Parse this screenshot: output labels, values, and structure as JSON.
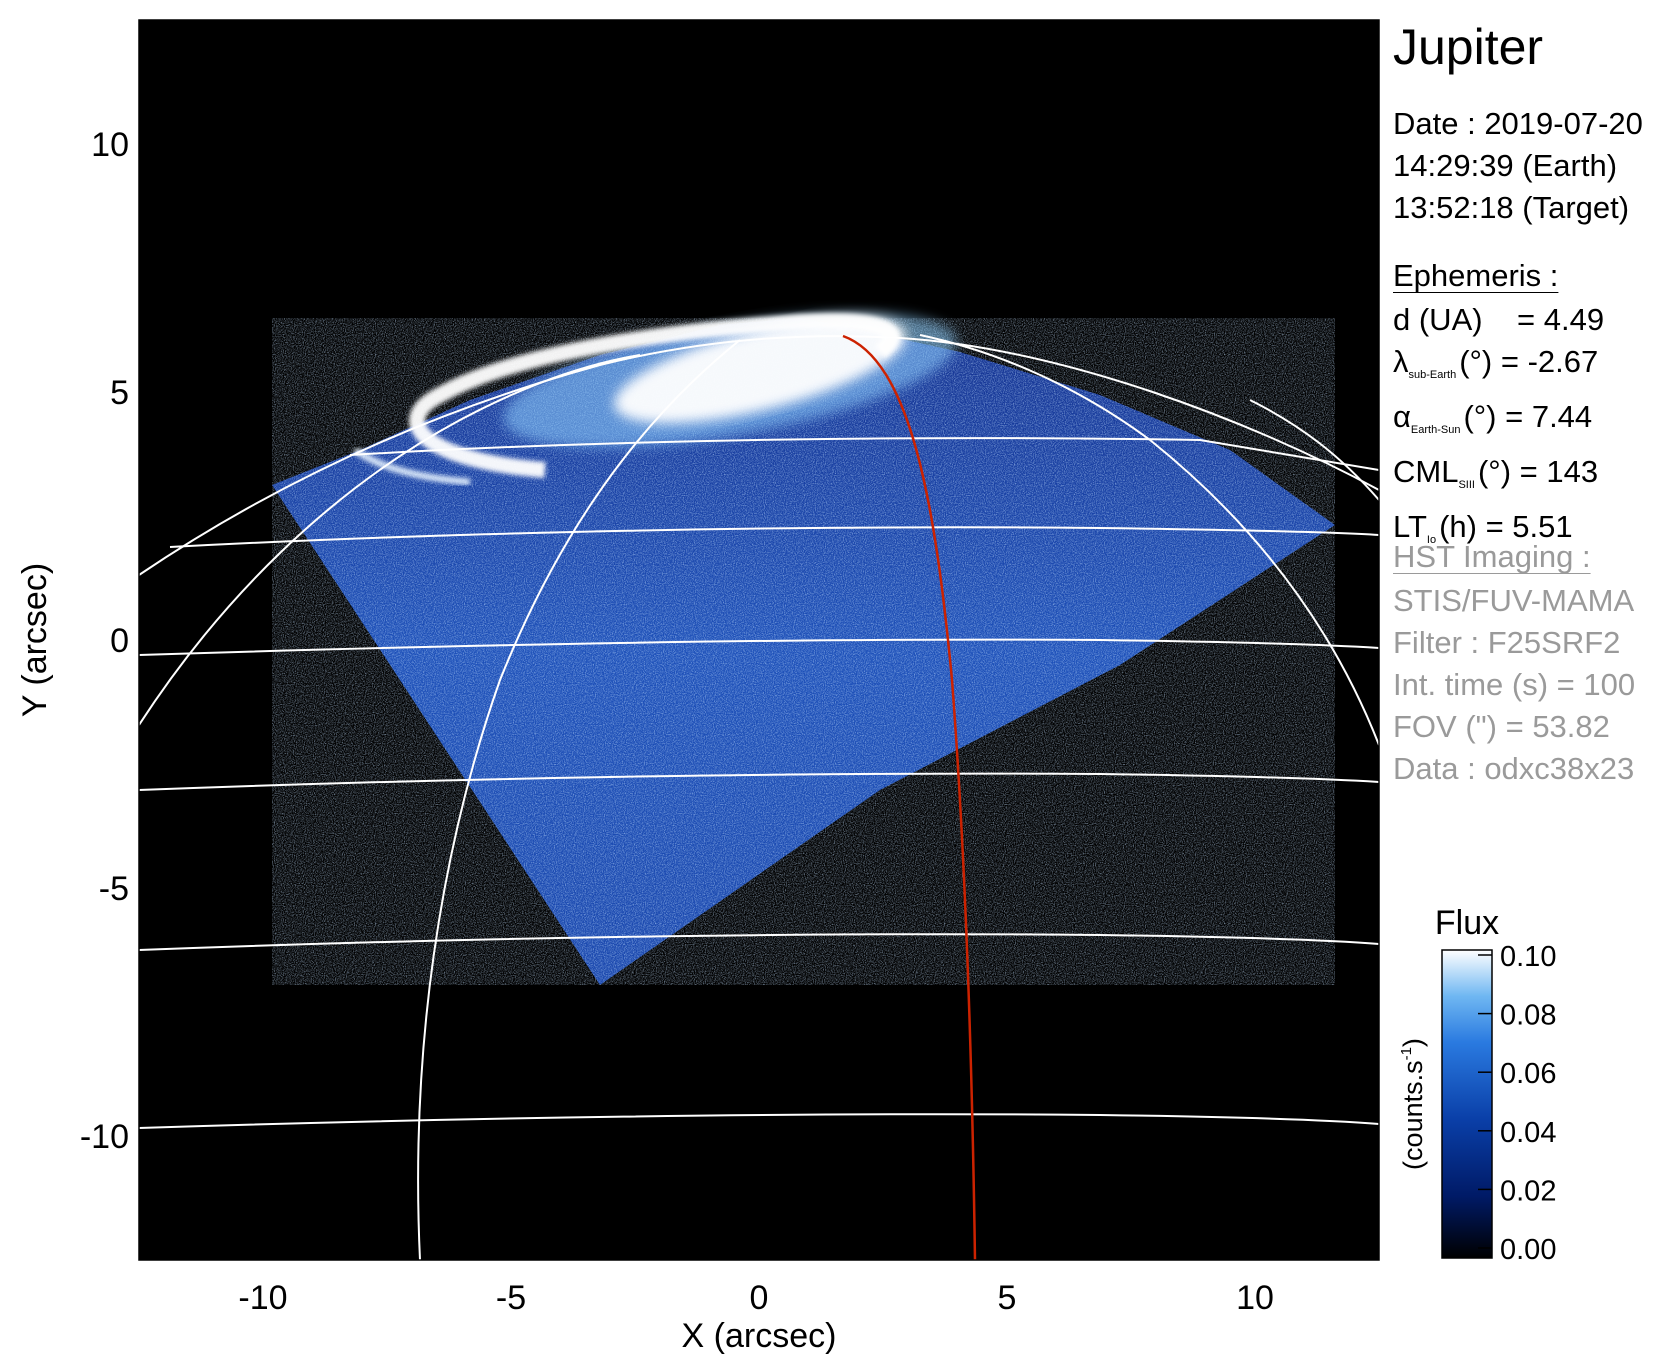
{
  "chart_data": {
    "type": "image",
    "xlabel": "X (arcsec)",
    "ylabel": "Y (arcsec)",
    "xlim": [
      -12.5,
      12.5
    ],
    "ylim": [
      -12.5,
      12.5
    ],
    "xticks": [
      -10,
      -5,
      0,
      5,
      10
    ],
    "yticks": [
      -10,
      -5,
      0,
      5,
      10
    ],
    "grid": true,
    "grid_color": "#ffffff",
    "meridian_color": "#cc2200",
    "background_color": "#000000",
    "colorbar": {
      "title": "Flux",
      "label": "(counts.s",
      "label_exp": "-1",
      "label_close": ")",
      "ticks": [
        "0.10",
        "0.08",
        "0.06",
        "0.04",
        "0.02",
        "0.00"
      ],
      "range": [
        0.0,
        0.1
      ],
      "colors": [
        "#000000",
        "#001a66",
        "#0a3fa8",
        "#2a7ae0",
        "#6fb7f2",
        "#ffffff"
      ]
    }
  },
  "title": "Jupiter",
  "date": {
    "line1": "Date : 2019-07-20",
    "line2": "14:29:39 (Earth)",
    "line3": "13:52:18 (Target)"
  },
  "ephemeris": {
    "header": "Ephemeris :",
    "d_label": "d (UA)",
    "d_value": "= 4.49",
    "lat_symbol": "λ",
    "lat_sub": "sub-Earth",
    "lat_rest": "(°) = -2.67",
    "phase_symbol": "α",
    "phase_sub": "Earth-Sun",
    "phase_rest": "(°) = 7.44",
    "cml_symbol": "CML",
    "cml_sub": "SIII",
    "cml_rest": "(°) = 143",
    "lt_symbol": "LT",
    "lt_sub": "Io",
    "lt_rest": "(h) = 5.51"
  },
  "hst": {
    "header": "HST Imaging :",
    "instrument": "STIS/FUV-MAMA",
    "filter": "Filter : F25SRF2",
    "int_time": "Int. time (s) = 100",
    "fov": "FOV (\") = 53.82",
    "data": "Data : odxc38x23"
  }
}
